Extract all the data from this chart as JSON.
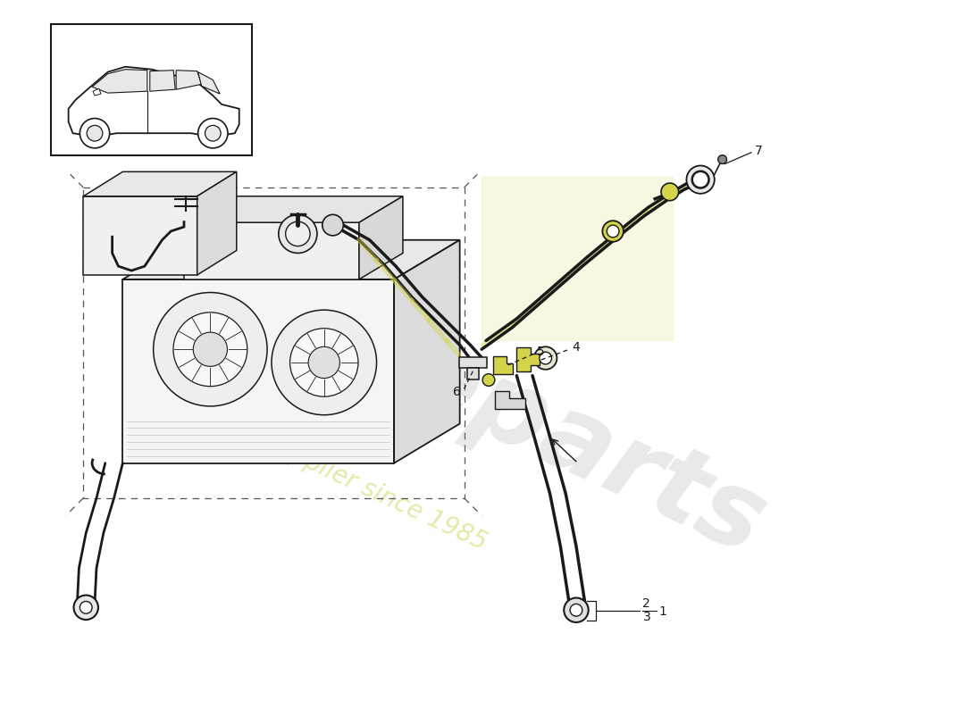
{
  "background_color": "#ffffff",
  "line_color": "#1a1a1a",
  "dashed_color": "#555555",
  "yellow_color": "#d4d44a",
  "yellow_light": "#e8e8a0",
  "gray_light": "#e8e8e8",
  "gray_mid": "#cccccc",
  "watermark1": "europeparts",
  "watermark2": "a parts supplier since 1985",
  "wm_color1": "#c8c8c8",
  "wm_color2": "#d8d870",
  "wm_alpha1": 0.4,
  "wm_alpha2": 0.6,
  "part_labels": [
    "1",
    "2",
    "3",
    "4",
    "5",
    "6",
    "7"
  ]
}
